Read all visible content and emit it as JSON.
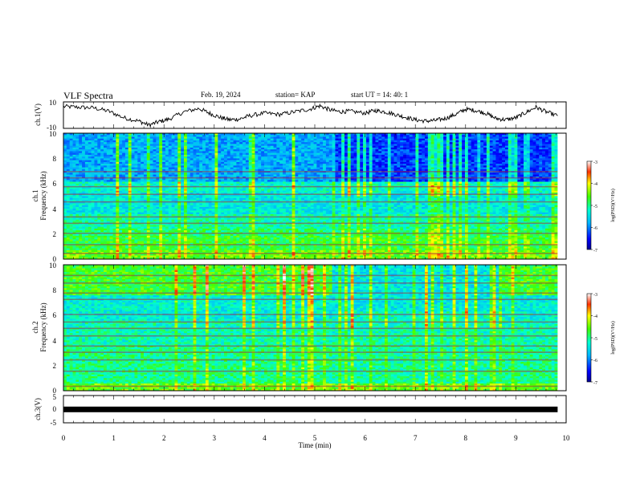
{
  "header": {
    "title": "VLF Spectra",
    "date": "Feb. 19, 2024",
    "station": "station= KAP",
    "start": "start  UT  =   14: 40: 1"
  },
  "chart_data": [
    {
      "type": "line",
      "ylabel": "ch.1(V)",
      "ylim": [
        -10,
        10
      ],
      "yticks": [
        "10",
        "-10"
      ],
      "xlim": [
        0,
        10
      ],
      "x_end": 9.83,
      "trace": [
        {
          "t": 0.0,
          "v": 6.5
        },
        {
          "t": 0.3,
          "v": 6.0
        },
        {
          "t": 0.6,
          "v": 5.5
        },
        {
          "t": 0.9,
          "v": 3.0
        },
        {
          "t": 1.2,
          "v": -2.0
        },
        {
          "t": 1.5,
          "v": -4.5
        },
        {
          "t": 1.7,
          "v": -7.5
        },
        {
          "t": 1.9,
          "v": -5.0
        },
        {
          "t": 2.1,
          "v": -3.0
        },
        {
          "t": 2.4,
          "v": 2.5
        },
        {
          "t": 2.7,
          "v": 5.0
        },
        {
          "t": 2.9,
          "v": 1.5
        },
        {
          "t": 3.1,
          "v": -1.5
        },
        {
          "t": 3.3,
          "v": -3.5
        },
        {
          "t": 3.5,
          "v": -3.0
        },
        {
          "t": 3.7,
          "v": -0.5
        },
        {
          "t": 4.0,
          "v": 1.5
        },
        {
          "t": 4.3,
          "v": 0.5
        },
        {
          "t": 4.6,
          "v": 2.5
        },
        {
          "t": 4.9,
          "v": 4.5
        },
        {
          "t": 5.1,
          "v": 7.0
        },
        {
          "t": 5.3,
          "v": 4.0
        },
        {
          "t": 5.5,
          "v": 2.5
        },
        {
          "t": 5.7,
          "v": 3.0
        },
        {
          "t": 6.0,
          "v": 1.5
        },
        {
          "t": 6.2,
          "v": 3.5
        },
        {
          "t": 6.4,
          "v": 2.5
        },
        {
          "t": 6.6,
          "v": 0.5
        },
        {
          "t": 6.8,
          "v": -1.5
        },
        {
          "t": 7.0,
          "v": -3.5
        },
        {
          "t": 7.2,
          "v": -4.5
        },
        {
          "t": 7.4,
          "v": -4.0
        },
        {
          "t": 7.6,
          "v": -2.5
        },
        {
          "t": 7.8,
          "v": 0.5
        },
        {
          "t": 8.0,
          "v": 4.5
        },
        {
          "t": 8.2,
          "v": 3.5
        },
        {
          "t": 8.4,
          "v": 1.5
        },
        {
          "t": 8.6,
          "v": -2.5
        },
        {
          "t": 8.8,
          "v": -3.5
        },
        {
          "t": 9.0,
          "v": -2.0
        },
        {
          "t": 9.2,
          "v": 2.0
        },
        {
          "t": 9.4,
          "v": 6.0
        },
        {
          "t": 9.6,
          "v": 2.5
        },
        {
          "t": 9.83,
          "v": -0.5
        }
      ]
    },
    {
      "type": "heatmap",
      "ylabel": "ch.1",
      "ylabel2": "Frequency  (kHz)",
      "ylim": [
        0,
        10
      ],
      "yticks": [
        "0",
        "2",
        "4",
        "6",
        "8",
        "10"
      ],
      "xlim": [
        0,
        10
      ],
      "x_end": 9.83,
      "change_time": 5.35,
      "colorbar": {
        "label": "log(PSD)(V²/Hz)",
        "range": [
          -7,
          -3
        ],
        "ticks": [
          "-7",
          "-6",
          "-5",
          "-4",
          "-3"
        ]
      }
    },
    {
      "type": "heatmap",
      "ylabel": "ch.2",
      "ylabel2": "Frequency  (kHz)",
      "ylim": [
        0,
        10
      ],
      "yticks": [
        "0",
        "2",
        "4",
        "6",
        "8",
        "10"
      ],
      "xlim": [
        0,
        10
      ],
      "x_end": 9.83,
      "change_time": 5.35,
      "change_time2": 8.75,
      "colorbar": {
        "label": "log(PSD)(V²/Hz)",
        "range": [
          -7,
          -3
        ],
        "ticks": [
          "-7",
          "-6",
          "-5",
          "-4",
          "-3"
        ]
      }
    },
    {
      "type": "line",
      "ylabel": "ch.3(V)",
      "ylim": [
        -5,
        5
      ],
      "yticks": [
        "5",
        "0",
        "-5"
      ],
      "xlim": [
        0,
        10
      ],
      "x_end": 9.83,
      "level": -0.1,
      "xlabel": "Time  (min)",
      "xticks": [
        "0",
        "1",
        "2",
        "3",
        "4",
        "5",
        "6",
        "7",
        "8",
        "9",
        "10"
      ]
    }
  ]
}
